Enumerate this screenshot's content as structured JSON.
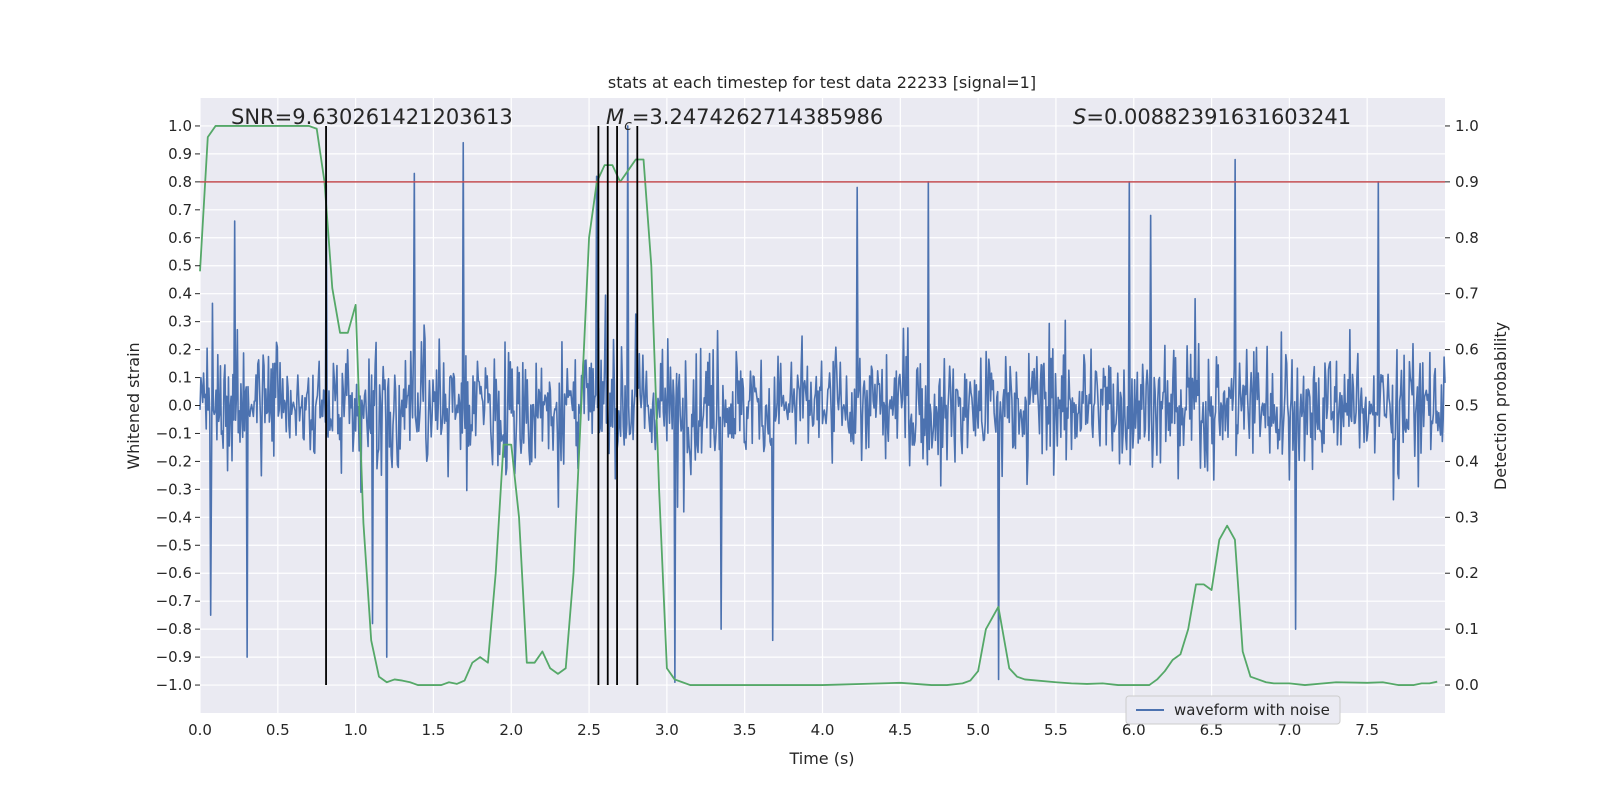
{
  "chart_data": {
    "type": "line",
    "title": "stats at each timestep for test data 22233 [signal=1]",
    "xlabel": "Time (s)",
    "ylabel": "Whitened strain",
    "y2label": "Detection probability",
    "xlim": [
      0.0,
      8.0
    ],
    "ylim": [
      -1.1,
      1.1
    ],
    "y2lim": [
      -0.05,
      1.05
    ],
    "xticks": [
      0.0,
      0.5,
      1.0,
      1.5,
      2.0,
      2.5,
      3.0,
      3.5,
      4.0,
      4.5,
      5.0,
      5.5,
      6.0,
      6.5,
      7.0,
      7.5
    ],
    "xtick_labels": [
      "0.0",
      "0.5",
      "1.0",
      "1.5",
      "2.0",
      "2.5",
      "3.0",
      "3.5",
      "4.0",
      "4.5",
      "5.0",
      "5.5",
      "6.0",
      "6.5",
      "7.0",
      "7.5"
    ],
    "yticks": [
      -1.0,
      -0.9,
      -0.8,
      -0.7,
      -0.6,
      -0.5,
      -0.4,
      -0.3,
      -0.2,
      -0.1,
      0.0,
      0.1,
      0.2,
      0.3,
      0.4,
      0.5,
      0.6,
      0.7,
      0.8,
      0.9,
      1.0
    ],
    "ytick_labels": [
      "−1.0",
      "−0.9",
      "−0.8",
      "−0.7",
      "−0.6",
      "−0.5",
      "−0.4",
      "−0.3",
      "−0.2",
      "−0.1",
      "0.0",
      "0.1",
      "0.2",
      "0.3",
      "0.4",
      "0.5",
      "0.6",
      "0.7",
      "0.8",
      "0.9",
      "1.0"
    ],
    "y2ticks": [
      0.0,
      0.1,
      0.2,
      0.3,
      0.4,
      0.5,
      0.6,
      0.7,
      0.8,
      0.9,
      1.0
    ],
    "y2tick_labels": [
      "0.0",
      "0.1",
      "0.2",
      "0.3",
      "0.4",
      "0.5",
      "0.6",
      "0.7",
      "0.8",
      "0.9",
      "1.0"
    ],
    "annotations": {
      "snr": "SNR=9.630261421203613",
      "mc_symbol": "M",
      "mc_sub": "c",
      "mc_value": "=3.2474262714385986",
      "s_symbol": "S",
      "s_value": "=0.00882391631603241"
    },
    "threshold": {
      "value": 0.9,
      "axis": "y2",
      "color": "#c44e52"
    },
    "vertical_markers": [
      0.81,
      2.56,
      2.62,
      2.68,
      2.81
    ],
    "vertical_marker_range": [
      -1.0,
      1.0
    ],
    "series": [
      {
        "name": "waveform with noise",
        "axis": "y",
        "color": "#4c72b0",
        "style": "dense-noise",
        "typical_amplitude": 0.25,
        "spike_peaks": [
          {
            "x": 0.3,
            "y": -0.9
          },
          {
            "x": 0.07,
            "y": -0.75
          },
          {
            "x": 0.22,
            "y": 0.66
          },
          {
            "x": 0.81,
            "y": 0.79
          },
          {
            "x": 1.38,
            "y": 0.83
          },
          {
            "x": 1.69,
            "y": 0.94
          },
          {
            "x": 1.11,
            "y": -0.78
          },
          {
            "x": 1.2,
            "y": -0.9
          },
          {
            "x": 2.55,
            "y": 0.82
          },
          {
            "x": 2.75,
            "y": 1.0
          },
          {
            "x": 3.05,
            "y": -0.99
          },
          {
            "x": 3.35,
            "y": -0.8
          },
          {
            "x": 3.68,
            "y": -0.84
          },
          {
            "x": 4.22,
            "y": 0.78
          },
          {
            "x": 4.68,
            "y": 0.8
          },
          {
            "x": 5.13,
            "y": -0.98
          },
          {
            "x": 5.97,
            "y": 0.8
          },
          {
            "x": 6.11,
            "y": 0.68
          },
          {
            "x": 6.65,
            "y": 0.88
          },
          {
            "x": 7.04,
            "y": -0.8
          },
          {
            "x": 7.57,
            "y": 0.8
          }
        ]
      },
      {
        "name": "detection probability",
        "axis": "y2",
        "color": "#55a868",
        "x": [
          0.0,
          0.05,
          0.1,
          0.2,
          0.3,
          0.4,
          0.5,
          0.6,
          0.7,
          0.75,
          0.8,
          0.85,
          0.9,
          0.95,
          1.0,
          1.05,
          1.1,
          1.15,
          1.2,
          1.25,
          1.3,
          1.35,
          1.4,
          1.45,
          1.5,
          1.55,
          1.6,
          1.65,
          1.7,
          1.75,
          1.8,
          1.85,
          1.9,
          1.95,
          2.0,
          2.05,
          2.1,
          2.15,
          2.2,
          2.25,
          2.3,
          2.35,
          2.4,
          2.45,
          2.5,
          2.55,
          2.6,
          2.65,
          2.7,
          2.75,
          2.8,
          2.85,
          2.9,
          2.95,
          3.0,
          3.05,
          3.1,
          3.15,
          3.2,
          3.3,
          3.5,
          4.0,
          4.5,
          4.7,
          4.8,
          4.9,
          4.95,
          5.0,
          5.05,
          5.13,
          5.2,
          5.25,
          5.3,
          5.5,
          5.6,
          5.7,
          5.8,
          5.9,
          6.0,
          6.1,
          6.15,
          6.2,
          6.25,
          6.3,
          6.35,
          6.4,
          6.45,
          6.5,
          6.55,
          6.6,
          6.65,
          6.7,
          6.75,
          6.8,
          6.85,
          6.9,
          7.0,
          7.1,
          7.3,
          7.5,
          7.6,
          7.7,
          7.8,
          7.85,
          7.9,
          7.95
        ],
        "values": [
          0.74,
          0.98,
          1.0,
          1.0,
          1.0,
          1.0,
          1.0,
          1.0,
          1.0,
          0.995,
          0.9,
          0.71,
          0.63,
          0.63,
          0.68,
          0.29,
          0.08,
          0.015,
          0.005,
          0.01,
          0.008,
          0.005,
          0.0,
          0.0,
          0.0,
          0.0,
          0.005,
          0.002,
          0.008,
          0.04,
          0.05,
          0.04,
          0.2,
          0.43,
          0.43,
          0.3,
          0.04,
          0.04,
          0.06,
          0.03,
          0.02,
          0.03,
          0.2,
          0.5,
          0.8,
          0.9,
          0.93,
          0.93,
          0.9,
          0.92,
          0.94,
          0.94,
          0.75,
          0.35,
          0.03,
          0.01,
          0.005,
          0.0,
          0.0,
          0.0,
          0.0,
          0.0,
          0.004,
          0.0,
          0.0,
          0.003,
          0.008,
          0.025,
          0.1,
          0.14,
          0.03,
          0.015,
          0.01,
          0.005,
          0.003,
          0.002,
          0.003,
          0.0,
          0.0,
          0.0,
          0.01,
          0.025,
          0.045,
          0.055,
          0.1,
          0.18,
          0.18,
          0.17,
          0.26,
          0.285,
          0.26,
          0.06,
          0.015,
          0.01,
          0.005,
          0.003,
          0.003,
          0.0,
          0.005,
          0.004,
          0.005,
          0.0,
          0.0,
          0.003,
          0.003,
          0.006
        ]
      }
    ],
    "legend": {
      "position": "lower-right",
      "entries": [
        {
          "label": "waveform with noise",
          "color": "#4c72b0"
        }
      ]
    }
  }
}
